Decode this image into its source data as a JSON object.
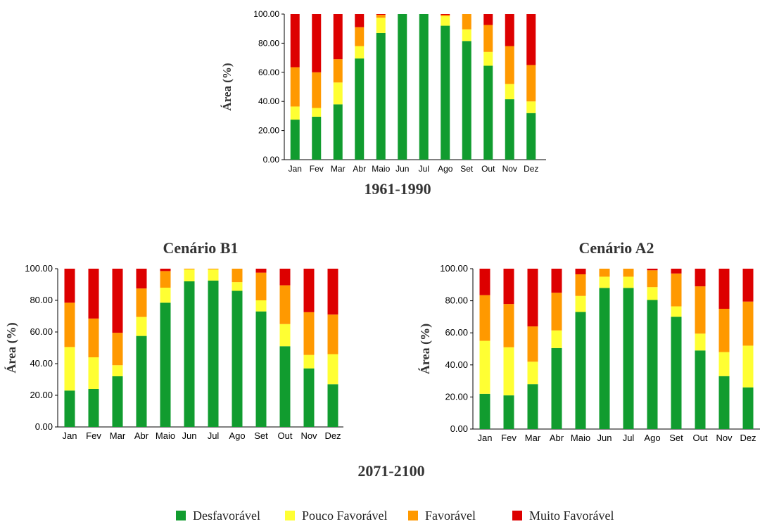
{
  "legend": [
    {
      "label": "Desfavorável",
      "color": "#119c2f"
    },
    {
      "label": "Pouco Favorável",
      "color": "#ffff33"
    },
    {
      "label": "Favorável",
      "color": "#ff9900"
    },
    {
      "label": "Muito Favorável",
      "color": "#dd0000"
    }
  ],
  "bottom_caption": "2071-2100",
  "chart_data": [
    {
      "type": "bar",
      "stacked": true,
      "title": "",
      "caption": "1961-1990",
      "xlabel": "",
      "ylabel": "Área (%)",
      "ylim": [
        0,
        100
      ],
      "yticks": [
        "0.00",
        "20.00",
        "40.00",
        "60.00",
        "80.00",
        "100.00"
      ],
      "categories": [
        "Jan",
        "Fev",
        "Mar",
        "Abr",
        "Maio",
        "Jun",
        "Jul",
        "Ago",
        "Set",
        "Out",
        "Nov",
        "Dez"
      ],
      "series": [
        {
          "name": "Desfavorável",
          "values": [
            27.5,
            29.5,
            38,
            69.5,
            87,
            100,
            100,
            92,
            81.5,
            64.5,
            41.5,
            32
          ]
        },
        {
          "name": "Pouco Favorável",
          "values": [
            9,
            6,
            15,
            8.5,
            10.5,
            0,
            0,
            6.5,
            8,
            9.5,
            10.5,
            8
          ]
        },
        {
          "name": "Favorável",
          "values": [
            27,
            24.5,
            16,
            13,
            2,
            0,
            0,
            1,
            10.5,
            18.5,
            26,
            25
          ]
        },
        {
          "name": "Muito Favorável",
          "values": [
            36.5,
            40,
            31,
            9,
            0.5,
            0,
            0,
            0.5,
            0,
            7.5,
            22,
            35
          ]
        }
      ]
    },
    {
      "type": "bar",
      "stacked": true,
      "title": "Cenário B1",
      "xlabel": "",
      "ylabel": "Área (%)",
      "ylim": [
        0,
        100
      ],
      "yticks": [
        "0.00",
        "20.00",
        "40.00",
        "60.00",
        "80.00",
        "100.00"
      ],
      "categories": [
        "Jan",
        "Fev",
        "Mar",
        "Abr",
        "Maio",
        "Jun",
        "Jul",
        "Ago",
        "Set",
        "Out",
        "Nov",
        "Dez"
      ],
      "series": [
        {
          "name": "Desfavorável",
          "values": [
            23,
            24,
            32,
            57.5,
            78.5,
            92,
            92.5,
            86,
            73,
            51,
            37,
            27
          ]
        },
        {
          "name": "Pouco Favorável",
          "values": [
            27.5,
            20,
            7,
            12,
            9.5,
            7.5,
            7,
            5.5,
            7,
            14,
            8.5,
            19
          ]
        },
        {
          "name": "Favorável",
          "values": [
            28,
            24.5,
            20.5,
            18,
            10.5,
            0.5,
            0.5,
            8.5,
            17.5,
            24.5,
            27,
            25
          ]
        },
        {
          "name": "Muito Favorável",
          "values": [
            21.5,
            31.5,
            40.5,
            12.5,
            1.5,
            0,
            0,
            0,
            2.5,
            10.5,
            27.5,
            29
          ]
        }
      ]
    },
    {
      "type": "bar",
      "stacked": true,
      "title": "Cenário A2",
      "xlabel": "",
      "ylabel": "Área (%)",
      "ylim": [
        0,
        100
      ],
      "yticks": [
        "0.00",
        "20.00",
        "40.00",
        "60.00",
        "80.00",
        "100.00"
      ],
      "categories": [
        "Jan",
        "Fev",
        "Mar",
        "Abr",
        "Maio",
        "Jun",
        "Jul",
        "Ago",
        "Set",
        "Out",
        "Nov",
        "Dez"
      ],
      "series": [
        {
          "name": "Desfavorável",
          "values": [
            22,
            21,
            28,
            50.5,
            73,
            88,
            88,
            80.5,
            70,
            49,
            33,
            26
          ]
        },
        {
          "name": "Pouco Favorável",
          "values": [
            33,
            30,
            14,
            11,
            10,
            7,
            7,
            8,
            6.5,
            10.5,
            15,
            26
          ]
        },
        {
          "name": "Favorável",
          "values": [
            28.5,
            27,
            22,
            23.5,
            13.5,
            5,
            5,
            10.5,
            20.5,
            29.5,
            27,
            27.5
          ]
        },
        {
          "name": "Muito Favorável",
          "values": [
            16.5,
            22,
            36,
            15,
            3.5,
            0,
            0,
            1,
            3,
            11,
            25,
            20.5
          ]
        }
      ]
    }
  ]
}
